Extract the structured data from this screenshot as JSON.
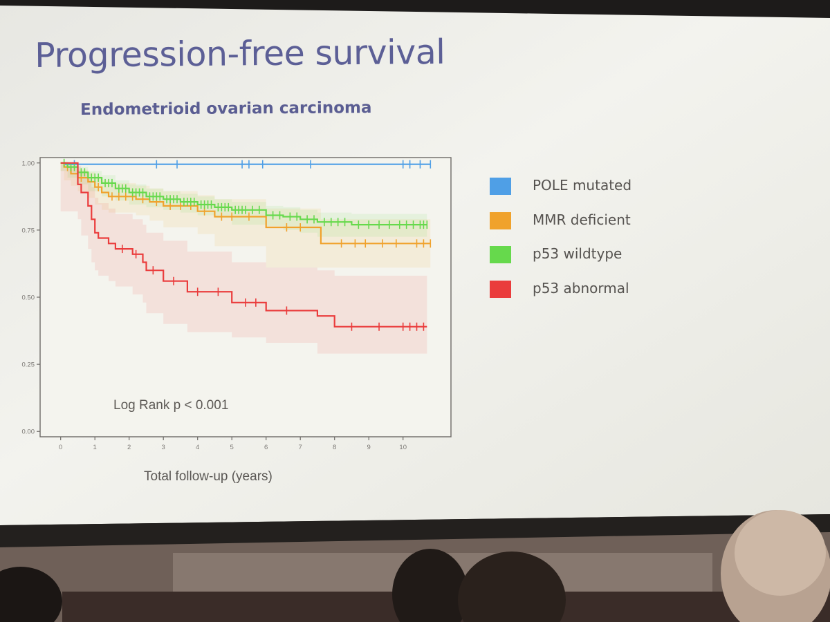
{
  "slide": {
    "title": "Progression-free survival",
    "subtitle": "Endometrioid ovarian carcinoma",
    "annotation": "Log Rank p < 0.001",
    "x_axis_title": "Total follow-up (years)"
  },
  "legend": [
    {
      "label": "POLE mutated",
      "color": "#4f9fe6"
    },
    {
      "label": "MMR deficient",
      "color": "#f0a22c"
    },
    {
      "label": "p53 wildtype",
      "color": "#66d94c"
    },
    {
      "label": "p53 abnormal",
      "color": "#ea3c3c"
    }
  ],
  "chart_data": {
    "type": "line",
    "subtype": "kaplan-meier step curves with confidence bands and censor ticks",
    "title": "Progression-free survival",
    "subtitle": "Endometrioid ovarian carcinoma",
    "xlabel": "Total follow-up (years)",
    "ylabel": "",
    "xlim": [
      -0.6,
      11.4
    ],
    "ylim": [
      -0.02,
      1.02
    ],
    "x_ticks": [
      0,
      1,
      2,
      3,
      4,
      5,
      6,
      7,
      8,
      9,
      10
    ],
    "y_ticks": [
      0.0,
      0.25,
      0.5,
      0.75,
      1.0
    ],
    "y_tick_labels": [
      "0.00",
      "0.25",
      "0.50",
      "0.75",
      "1.00"
    ],
    "grid": false,
    "legend_position": "right",
    "annotation": "Log Rank p < 0.001",
    "series": [
      {
        "name": "POLE mutated",
        "color": "#4f9fe6",
        "step_x": [
          0,
          0.15,
          10.8
        ],
        "step_y": [
          1.0,
          0.995,
          0.995
        ],
        "censor_x": [
          0.4,
          2.8,
          3.4,
          5.3,
          5.5,
          5.9,
          7.3,
          10,
          10.2,
          10.5,
          10.8
        ],
        "band": null
      },
      {
        "name": "MMR deficient",
        "color": "#f0a22c",
        "step_x": [
          0,
          0.1,
          0.3,
          0.5,
          0.8,
          1.0,
          1.2,
          1.4,
          2.2,
          2.6,
          3.0,
          4.0,
          4.5,
          6.0,
          7.6,
          10.8
        ],
        "step_y": [
          1.0,
          0.985,
          0.96,
          0.945,
          0.93,
          0.91,
          0.89,
          0.875,
          0.865,
          0.855,
          0.84,
          0.82,
          0.8,
          0.76,
          0.7,
          0.7
        ],
        "censor_x": [
          0.2,
          0.6,
          1.1,
          1.5,
          1.7,
          1.9,
          2.1,
          2.4,
          2.8,
          3.2,
          3.5,
          3.8,
          4.2,
          4.7,
          5.0,
          5.5,
          6.6,
          7.0,
          8.2,
          8.6,
          8.9,
          9.4,
          9.8,
          10.4,
          10.6,
          10.8
        ],
        "band": {
          "upper": [
            1.0,
            0.995,
            0.985,
            0.975,
            0.965,
            0.95,
            0.935,
            0.925,
            0.915,
            0.905,
            0.895,
            0.88,
            0.865,
            0.83,
            0.79,
            0.79
          ],
          "lower": [
            1.0,
            0.97,
            0.935,
            0.915,
            0.895,
            0.87,
            0.845,
            0.825,
            0.815,
            0.805,
            0.785,
            0.76,
            0.735,
            0.69,
            0.61,
            0.61
          ]
        }
      },
      {
        "name": "p53 wildtype",
        "color": "#66d94c",
        "step_x": [
          0,
          0.2,
          0.5,
          0.8,
          1.2,
          1.6,
          2.0,
          2.5,
          3.0,
          3.5,
          4.0,
          4.5,
          5.0,
          6.0,
          6.5,
          7.0,
          7.5,
          8.5,
          10.7
        ],
        "step_y": [
          1.0,
          0.985,
          0.965,
          0.945,
          0.925,
          0.905,
          0.89,
          0.875,
          0.865,
          0.855,
          0.845,
          0.835,
          0.825,
          0.805,
          0.8,
          0.79,
          0.78,
          0.77,
          0.77
        ],
        "censor_x": [
          0.1,
          0.3,
          0.4,
          0.6,
          0.7,
          0.9,
          1.0,
          1.1,
          1.3,
          1.4,
          1.5,
          1.7,
          1.8,
          1.9,
          2.1,
          2.2,
          2.3,
          2.4,
          2.6,
          2.7,
          2.8,
          2.9,
          3.1,
          3.2,
          3.3,
          3.4,
          3.6,
          3.7,
          3.8,
          3.9,
          4.1,
          4.2,
          4.3,
          4.4,
          4.6,
          4.7,
          4.8,
          4.9,
          5.1,
          5.2,
          5.3,
          5.4,
          5.6,
          5.8,
          6.2,
          6.4,
          6.7,
          6.9,
          7.2,
          7.4,
          7.7,
          7.9,
          8.1,
          8.3,
          8.7,
          9.0,
          9.3,
          9.6,
          9.9,
          10.1,
          10.3,
          10.5,
          10.6,
          10.7
        ],
        "band": {
          "upper": [
            1.0,
            0.995,
            0.985,
            0.97,
            0.955,
            0.935,
            0.92,
            0.905,
            0.895,
            0.885,
            0.875,
            0.865,
            0.855,
            0.84,
            0.835,
            0.825,
            0.815,
            0.81,
            0.81
          ],
          "lower": [
            1.0,
            0.97,
            0.945,
            0.92,
            0.895,
            0.875,
            0.86,
            0.845,
            0.835,
            0.825,
            0.815,
            0.805,
            0.795,
            0.77,
            0.765,
            0.75,
            0.74,
            0.725,
            0.725
          ]
        }
      },
      {
        "name": "p53 abnormal",
        "color": "#ea3c3c",
        "step_x": [
          0,
          0.5,
          0.6,
          0.8,
          0.9,
          1.0,
          1.1,
          1.4,
          1.6,
          2.1,
          2.4,
          2.5,
          3.0,
          3.7,
          5.0,
          6.0,
          7.5,
          8.0,
          10.7
        ],
        "step_y": [
          1.0,
          0.92,
          0.89,
          0.84,
          0.79,
          0.74,
          0.72,
          0.7,
          0.68,
          0.66,
          0.63,
          0.6,
          0.56,
          0.52,
          0.48,
          0.45,
          0.43,
          0.39,
          0.39
        ],
        "censor_x": [
          1.8,
          2.2,
          2.7,
          3.3,
          4.0,
          4.6,
          5.4,
          5.7,
          6.6,
          8.5,
          9.3,
          10.0,
          10.2,
          10.4,
          10.6
        ],
        "band": {
          "upper": [
            1.0,
            0.99,
            0.97,
            0.94,
            0.91,
            0.87,
            0.85,
            0.83,
            0.81,
            0.79,
            0.77,
            0.74,
            0.71,
            0.67,
            0.63,
            0.61,
            0.6,
            0.58,
            0.58
          ],
          "lower": [
            1.0,
            0.82,
            0.79,
            0.73,
            0.68,
            0.63,
            0.6,
            0.58,
            0.56,
            0.54,
            0.51,
            0.48,
            0.44,
            0.4,
            0.37,
            0.35,
            0.33,
            0.29,
            0.29
          ]
        }
      }
    ]
  }
}
